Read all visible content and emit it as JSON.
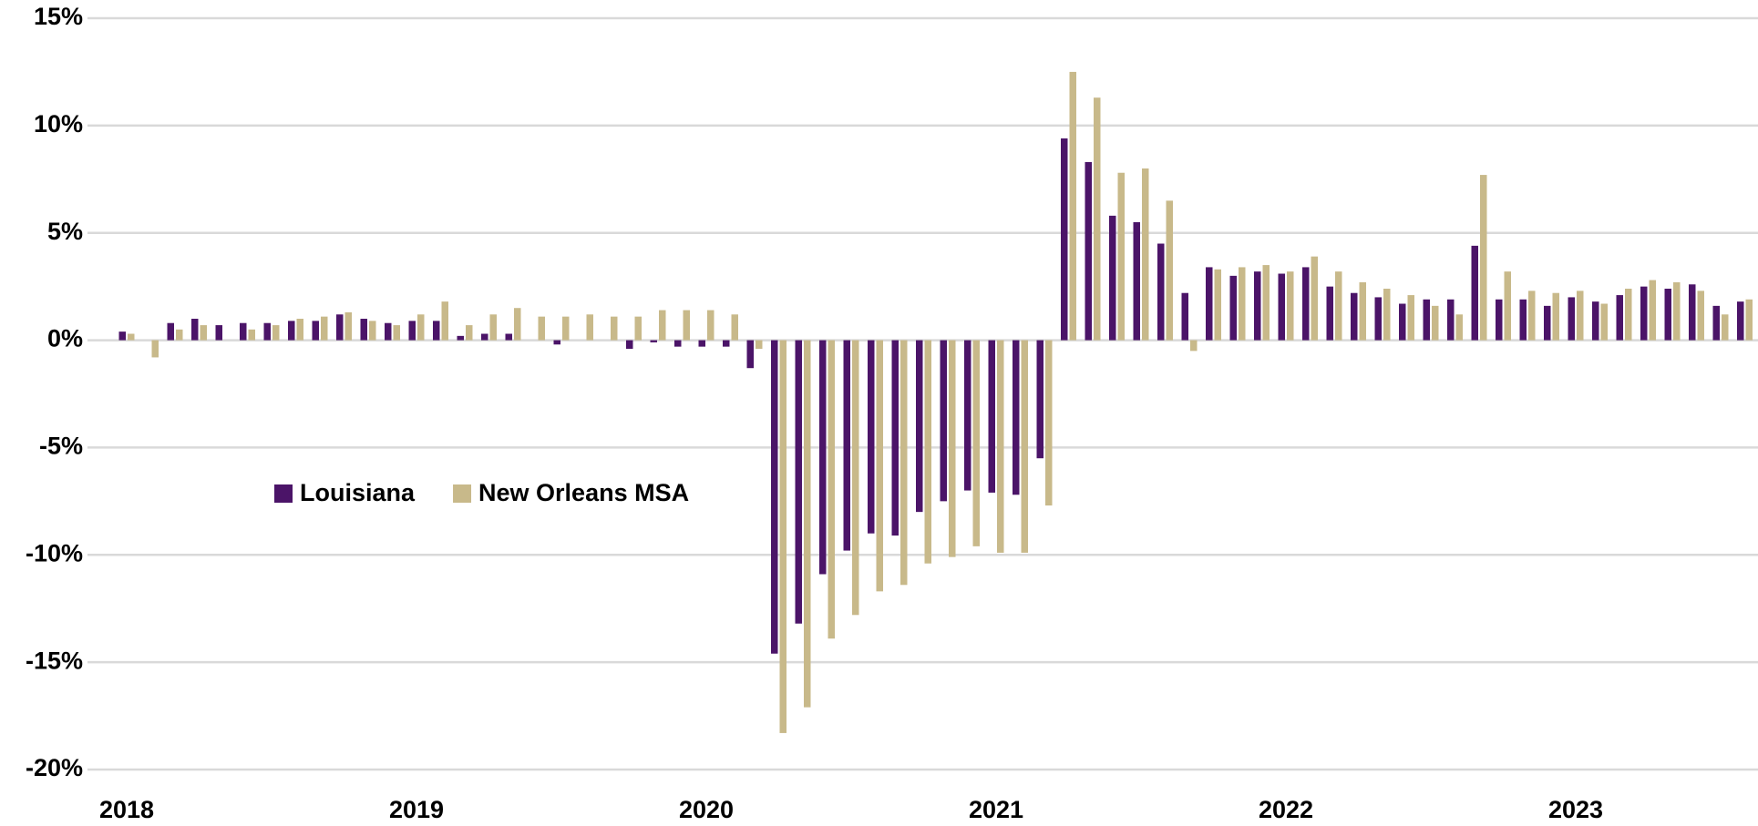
{
  "chart_data": {
    "type": "bar",
    "categories": [
      "2018",
      null,
      null,
      null,
      null,
      null,
      null,
      null,
      null,
      null,
      null,
      null,
      "2019",
      null,
      null,
      null,
      null,
      null,
      null,
      null,
      null,
      null,
      null,
      null,
      "2020",
      null,
      null,
      null,
      null,
      null,
      null,
      null,
      null,
      null,
      null,
      null,
      "2021",
      null,
      null,
      null,
      null,
      null,
      null,
      null,
      null,
      null,
      null,
      null,
      "2022",
      null,
      null,
      null,
      null,
      null,
      null,
      null,
      null,
      null,
      null,
      null,
      "2023",
      null,
      null,
      null,
      null,
      null,
      null,
      null
    ],
    "series": [
      {
        "name": "Louisiana",
        "color": "#4b1468",
        "values": [
          0.4,
          0,
          0.8,
          1.0,
          0.7,
          0.8,
          0.8,
          0.9,
          0.9,
          1.2,
          1.0,
          0.8,
          0.9,
          0.9,
          0.2,
          0.3,
          0.3,
          0,
          -0.2,
          0,
          0,
          -0.4,
          -0.1,
          -0.3,
          -0.3,
          -0.3,
          -1.3,
          -14.6,
          -13.2,
          -10.9,
          -9.8,
          -9.0,
          -9.1,
          -8.0,
          -7.5,
          -7.0,
          -7.1,
          -7.2,
          -5.5,
          9.4,
          8.3,
          5.8,
          5.5,
          4.5,
          2.2,
          3.4,
          3.0,
          3.2,
          3.1,
          3.4,
          2.5,
          2.2,
          2.0,
          1.7,
          1.9,
          1.9,
          4.4,
          1.9,
          1.9,
          1.6,
          2.0,
          1.8,
          2.1,
          2.5,
          2.4,
          2.6,
          1.6,
          1.8
        ]
      },
      {
        "name": "New Orleans MSA",
        "color": "#c8b98a",
        "values": [
          0.3,
          -0.8,
          0.5,
          0.7,
          0,
          0.5,
          0.7,
          1.0,
          1.1,
          1.3,
          0.9,
          0.7,
          1.2,
          1.8,
          0.7,
          1.2,
          1.5,
          1.1,
          1.1,
          1.2,
          1.1,
          1.1,
          1.4,
          1.4,
          1.4,
          1.2,
          -0.4,
          -18.3,
          -17.1,
          -13.9,
          -12.8,
          -11.7,
          -11.4,
          -10.4,
          -10.1,
          -9.6,
          -9.9,
          -9.9,
          -7.7,
          12.5,
          11.3,
          7.8,
          8.0,
          6.5,
          -0.5,
          3.3,
          3.4,
          3.5,
          3.2,
          3.9,
          3.2,
          2.7,
          2.4,
          2.1,
          1.6,
          1.2,
          7.7,
          3.2,
          2.3,
          2.2,
          2.3,
          1.7,
          2.4,
          2.8,
          2.7,
          2.3,
          1.2,
          1.9
        ]
      }
    ],
    "ylim": [
      -20,
      15
    ],
    "yticks": [
      {
        "value": -20,
        "label": "-20%"
      },
      {
        "value": -15,
        "label": "-15%"
      },
      {
        "value": -10,
        "label": "-10%"
      },
      {
        "value": -5,
        "label": "-5%"
      },
      {
        "value": 0,
        "label": "0%"
      },
      {
        "value": 5,
        "label": "5%"
      },
      {
        "value": 10,
        "label": "10%"
      },
      {
        "value": 15,
        "label": "15%"
      }
    ],
    "grid": true
  }
}
